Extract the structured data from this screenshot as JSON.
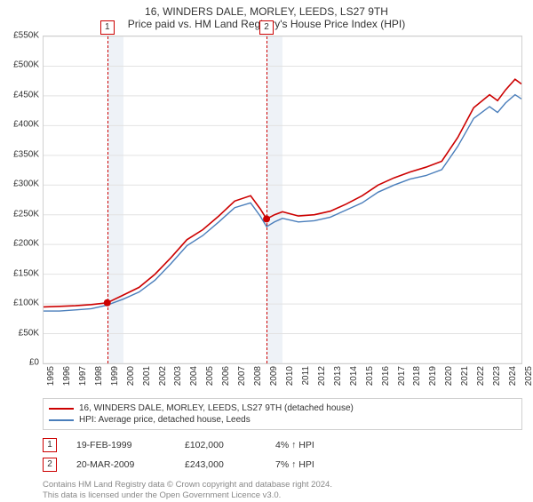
{
  "title_line1": "16, WINDERS DALE, MORLEY, LEEDS, LS27 9TH",
  "title_line2": "Price paid vs. HM Land Registry's House Price Index (HPI)",
  "chart": {
    "type": "line",
    "background_color": "#ffffff",
    "grid_color": "#e2e2e2",
    "border_color": "#d0d0d0",
    "shade_color": "#eef2f7",
    "x_min": 1995,
    "x_max": 2025,
    "y_min": 0,
    "y_max": 550000,
    "y_tick_step": 50000,
    "y_tick_labels": [
      "£0",
      "£50K",
      "£100K",
      "£150K",
      "£200K",
      "£250K",
      "£300K",
      "£350K",
      "£400K",
      "£450K",
      "£500K",
      "£550K"
    ],
    "x_ticks": [
      1995,
      1996,
      1997,
      1998,
      1999,
      2000,
      2001,
      2002,
      2003,
      2004,
      2005,
      2006,
      2007,
      2008,
      2009,
      2010,
      2011,
      2012,
      2013,
      2014,
      2015,
      2016,
      2017,
      2018,
      2019,
      2020,
      2021,
      2022,
      2023,
      2024,
      2025
    ],
    "shaded_ranges": [
      [
        1999,
        2000
      ],
      [
        2009,
        2010
      ]
    ],
    "vdash_x": [
      1999,
      2009
    ],
    "markers": [
      {
        "n": "1",
        "x": 1999,
        "y": 102000,
        "box_y": -18
      },
      {
        "n": "2",
        "x": 2009,
        "y": 243000,
        "box_y": -18
      }
    ],
    "series": [
      {
        "name": "price_paid",
        "color": "#cc0000",
        "width": 1.6,
        "data": [
          [
            1995,
            95000
          ],
          [
            1996,
            96000
          ],
          [
            1997,
            97000
          ],
          [
            1998,
            99000
          ],
          [
            1999,
            102000
          ],
          [
            2000,
            115000
          ],
          [
            2001,
            128000
          ],
          [
            2002,
            150000
          ],
          [
            2003,
            178000
          ],
          [
            2004,
            208000
          ],
          [
            2005,
            225000
          ],
          [
            2006,
            248000
          ],
          [
            2007,
            273000
          ],
          [
            2008,
            282000
          ],
          [
            2008.6,
            260000
          ],
          [
            2009,
            243000
          ],
          [
            2009.5,
            250000
          ],
          [
            2010,
            255000
          ],
          [
            2011,
            248000
          ],
          [
            2012,
            250000
          ],
          [
            2013,
            256000
          ],
          [
            2014,
            268000
          ],
          [
            2015,
            282000
          ],
          [
            2016,
            300000
          ],
          [
            2017,
            312000
          ],
          [
            2018,
            322000
          ],
          [
            2019,
            330000
          ],
          [
            2020,
            340000
          ],
          [
            2021,
            380000
          ],
          [
            2022,
            430000
          ],
          [
            2023,
            452000
          ],
          [
            2023.5,
            442000
          ],
          [
            2024,
            460000
          ],
          [
            2024.6,
            478000
          ],
          [
            2025,
            470000
          ]
        ]
      },
      {
        "name": "hpi",
        "color": "#4a7ebb",
        "width": 1.4,
        "data": [
          [
            1995,
            88000
          ],
          [
            1996,
            88000
          ],
          [
            1997,
            90000
          ],
          [
            1998,
            92000
          ],
          [
            1999,
            98000
          ],
          [
            2000,
            108000
          ],
          [
            2001,
            120000
          ],
          [
            2002,
            140000
          ],
          [
            2003,
            168000
          ],
          [
            2004,
            198000
          ],
          [
            2005,
            215000
          ],
          [
            2006,
            238000
          ],
          [
            2007,
            262000
          ],
          [
            2008,
            270000
          ],
          [
            2008.6,
            248000
          ],
          [
            2009,
            230000
          ],
          [
            2009.5,
            238000
          ],
          [
            2010,
            244000
          ],
          [
            2011,
            238000
          ],
          [
            2012,
            240000
          ],
          [
            2013,
            246000
          ],
          [
            2014,
            258000
          ],
          [
            2015,
            270000
          ],
          [
            2016,
            288000
          ],
          [
            2017,
            300000
          ],
          [
            2018,
            310000
          ],
          [
            2019,
            316000
          ],
          [
            2020,
            326000
          ],
          [
            2021,
            365000
          ],
          [
            2022,
            412000
          ],
          [
            2023,
            432000
          ],
          [
            2023.5,
            422000
          ],
          [
            2024,
            438000
          ],
          [
            2024.6,
            452000
          ],
          [
            2025,
            445000
          ]
        ]
      }
    ]
  },
  "legend": [
    {
      "color": "#cc0000",
      "label": "16, WINDERS DALE, MORLEY, LEEDS, LS27 9TH (detached house)"
    },
    {
      "color": "#4a7ebb",
      "label": "HPI: Average price, detached house, Leeds"
    }
  ],
  "table": [
    {
      "n": "1",
      "date": "19-FEB-1999",
      "price": "£102,000",
      "pct": "4% ↑ HPI"
    },
    {
      "n": "2",
      "date": "20-MAR-2009",
      "price": "£243,000",
      "pct": "7% ↑ HPI"
    }
  ],
  "footer_l1": "Contains HM Land Registry data © Crown copyright and database right 2024.",
  "footer_l2": "This data is licensed under the Open Government Licence v3.0."
}
